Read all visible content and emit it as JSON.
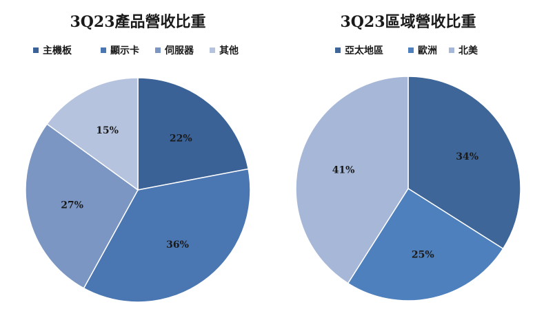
{
  "chart_data": [
    {
      "type": "pie",
      "title": "3Q23產品營收比重",
      "categories": [
        "主機板",
        "顯示卡",
        "伺服器",
        "其他"
      ],
      "values": [
        22,
        36,
        27,
        15
      ],
      "labels": [
        "22%",
        "36%",
        "27%",
        "15%"
      ],
      "colors": [
        "#3b6296",
        "#4a76b1",
        "#7b96c3",
        "#b5c3de"
      ],
      "legend_position": "top"
    },
    {
      "type": "pie",
      "title": "3Q23區域營收比重",
      "categories": [
        "亞太地區",
        "歐洲",
        "北美"
      ],
      "values": [
        34,
        25,
        41
      ],
      "labels": [
        "34%",
        "25%",
        "41%"
      ],
      "colors": [
        "#3f6698",
        "#4e80bd",
        "#a6b7d7"
      ],
      "legend_position": "top"
    }
  ]
}
